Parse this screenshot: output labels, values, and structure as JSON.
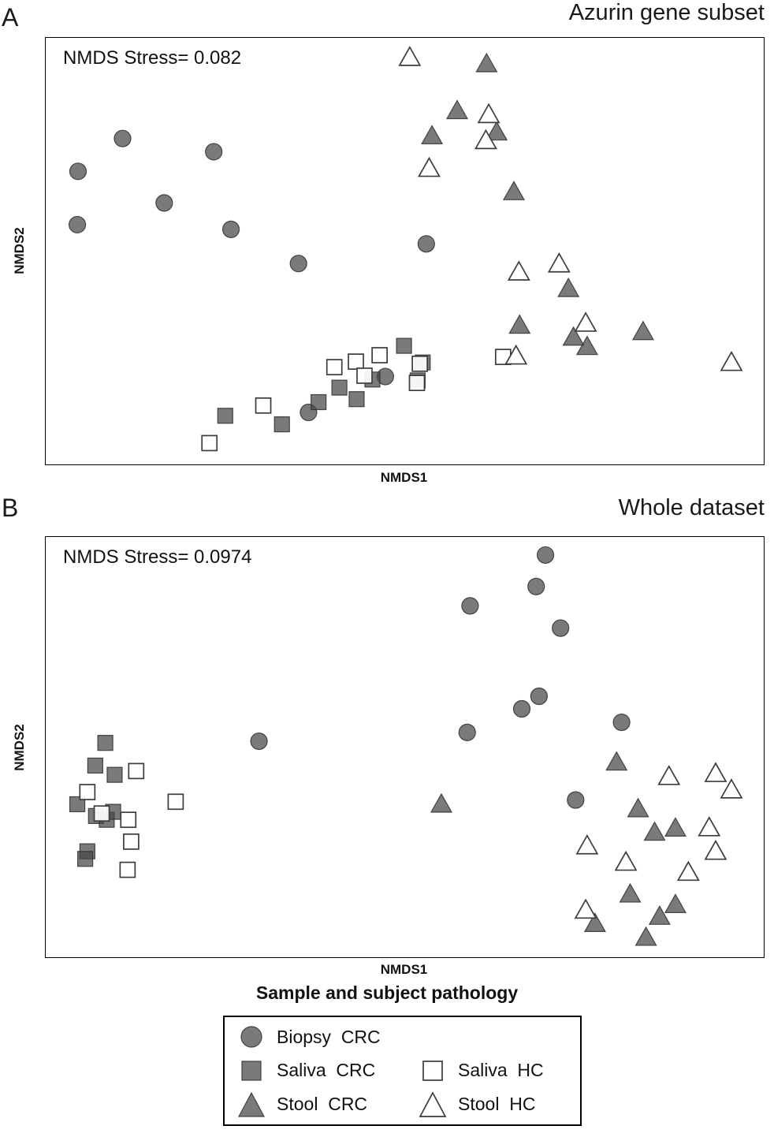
{
  "figure": {
    "panels": [
      {
        "label": "A",
        "title": "Azurin gene subset",
        "stress": "NMDS Stress= 0.082",
        "xlabel": "NMDS1",
        "ylabel": "NMDS2"
      },
      {
        "label": "B",
        "title": "Whole dataset",
        "stress": "NMDS Stress= 0.0974",
        "xlabel": "NMDS1",
        "ylabel": "NMDS2"
      }
    ],
    "legend": {
      "title": "Sample and subject pathology",
      "entries": [
        {
          "label": "Biopsy  CRC",
          "symbol": "circle",
          "filled": true
        },
        {
          "label": "Saliva  CRC",
          "symbol": "square",
          "filled": true
        },
        {
          "label": "Stool  CRC",
          "symbol": "triangle",
          "filled": true
        },
        {
          "label": "Saliva  HC",
          "symbol": "square",
          "filled": false
        },
        {
          "label": "Stool  HC",
          "symbol": "triangle",
          "filled": false
        }
      ]
    },
    "colors": {
      "filled_marker": "#6e6e6e",
      "marker_outline": "#333333",
      "open_marker_fill": "#ffffff",
      "frame": "#000000"
    }
  },
  "chart_data": [
    {
      "type": "scatter",
      "panel": "A",
      "title": "Azurin gene subset",
      "annotation": "NMDS Stress= 0.082",
      "xlabel": "NMDS1",
      "ylabel": "NMDS2",
      "axis_ticks": "none shown",
      "coordinates": "normalized 0-1 within plot frame, y increases upward",
      "series": [
        {
          "name": "Biopsy CRC",
          "symbol": "circle",
          "filled": true,
          "points": [
            [
              0.045,
              0.687
            ],
            [
              0.107,
              0.764
            ],
            [
              0.044,
              0.562
            ],
            [
              0.165,
              0.613
            ],
            [
              0.234,
              0.733
            ],
            [
              0.258,
              0.551
            ],
            [
              0.352,
              0.471
            ],
            [
              0.53,
              0.517
            ],
            [
              0.366,
              0.122
            ],
            [
              0.473,
              0.206
            ]
          ]
        },
        {
          "name": "Saliva CRC",
          "symbol": "square",
          "filled": true,
          "points": [
            [
              0.25,
              0.114
            ],
            [
              0.329,
              0.094
            ],
            [
              0.38,
              0.146
            ],
            [
              0.409,
              0.18
            ],
            [
              0.433,
              0.153
            ],
            [
              0.455,
              0.199
            ],
            [
              0.499,
              0.278
            ],
            [
              0.525,
              0.239
            ],
            [
              0.518,
              0.197
            ]
          ]
        },
        {
          "name": "Stool CRC",
          "symbol": "triangle",
          "filled": true,
          "points": [
            [
              0.614,
              0.939
            ],
            [
              0.573,
              0.829
            ],
            [
              0.538,
              0.77
            ],
            [
              0.628,
              0.779
            ],
            [
              0.652,
              0.639
            ],
            [
              0.728,
              0.412
            ],
            [
              0.66,
              0.326
            ],
            [
              0.735,
              0.298
            ],
            [
              0.754,
              0.276
            ],
            [
              0.832,
              0.311
            ]
          ]
        },
        {
          "name": "Saliva HC",
          "symbol": "square",
          "filled": false,
          "points": [
            [
              0.228,
              0.05
            ],
            [
              0.303,
              0.138
            ],
            [
              0.402,
              0.228
            ],
            [
              0.432,
              0.241
            ],
            [
              0.444,
              0.208
            ],
            [
              0.465,
              0.256
            ],
            [
              0.517,
              0.191
            ],
            [
              0.521,
              0.236
            ],
            [
              0.637,
              0.252
            ]
          ]
        },
        {
          "name": "Stool HC",
          "symbol": "triangle",
          "filled": false,
          "points": [
            [
              0.507,
              0.954
            ],
            [
              0.617,
              0.82
            ],
            [
              0.613,
              0.759
            ],
            [
              0.534,
              0.694
            ],
            [
              0.659,
              0.451
            ],
            [
              0.715,
              0.47
            ],
            [
              0.752,
              0.331
            ],
            [
              0.655,
              0.254
            ],
            [
              0.955,
              0.239
            ]
          ]
        }
      ]
    },
    {
      "type": "scatter",
      "panel": "B",
      "title": "Whole dataset",
      "annotation": "NMDS Stress= 0.0974",
      "xlabel": "NMDS1",
      "ylabel": "NMDS2",
      "axis_ticks": "none shown",
      "coordinates": "normalized 0-1 within plot frame, y increases upward",
      "series": [
        {
          "name": "Biopsy CRC",
          "symbol": "circle",
          "filled": true,
          "points": [
            [
              0.696,
              0.957
            ],
            [
              0.683,
              0.882
            ],
            [
              0.591,
              0.836
            ],
            [
              0.717,
              0.783
            ],
            [
              0.687,
              0.621
            ],
            [
              0.663,
              0.591
            ],
            [
              0.587,
              0.535
            ],
            [
              0.802,
              0.559
            ],
            [
              0.297,
              0.514
            ],
            [
              0.738,
              0.374
            ]
          ]
        },
        {
          "name": "Saliva CRC",
          "symbol": "square",
          "filled": true,
          "points": [
            [
              0.083,
              0.51
            ],
            [
              0.069,
              0.456
            ],
            [
              0.096,
              0.434
            ],
            [
              0.044,
              0.364
            ],
            [
              0.07,
              0.336
            ],
            [
              0.085,
              0.327
            ],
            [
              0.094,
              0.346
            ],
            [
              0.058,
              0.252
            ],
            [
              0.055,
              0.234
            ]
          ]
        },
        {
          "name": "Stool CRC",
          "symbol": "triangle",
          "filled": true,
          "points": [
            [
              0.795,
              0.464
            ],
            [
              0.551,
              0.364
            ],
            [
              0.825,
              0.353
            ],
            [
              0.848,
              0.297
            ],
            [
              0.877,
              0.307
            ],
            [
              0.814,
              0.15
            ],
            [
              0.877,
              0.125
            ],
            [
              0.855,
              0.097
            ],
            [
              0.765,
              0.08
            ],
            [
              0.836,
              0.047
            ]
          ]
        },
        {
          "name": "Saliva HC",
          "symbol": "square",
          "filled": false,
          "points": [
            [
              0.126,
              0.443
            ],
            [
              0.058,
              0.393
            ],
            [
              0.181,
              0.37
            ],
            [
              0.078,
              0.342
            ],
            [
              0.115,
              0.327
            ],
            [
              0.119,
              0.275
            ],
            [
              0.114,
              0.208
            ]
          ]
        },
        {
          "name": "Stool HC",
          "symbol": "triangle",
          "filled": false,
          "points": [
            [
              0.868,
              0.43
            ],
            [
              0.933,
              0.437
            ],
            [
              0.955,
              0.398
            ],
            [
              0.924,
              0.308
            ],
            [
              0.933,
              0.252
            ],
            [
              0.754,
              0.265
            ],
            [
              0.808,
              0.226
            ],
            [
              0.895,
              0.202
            ],
            [
              0.752,
              0.112
            ]
          ]
        }
      ]
    }
  ]
}
